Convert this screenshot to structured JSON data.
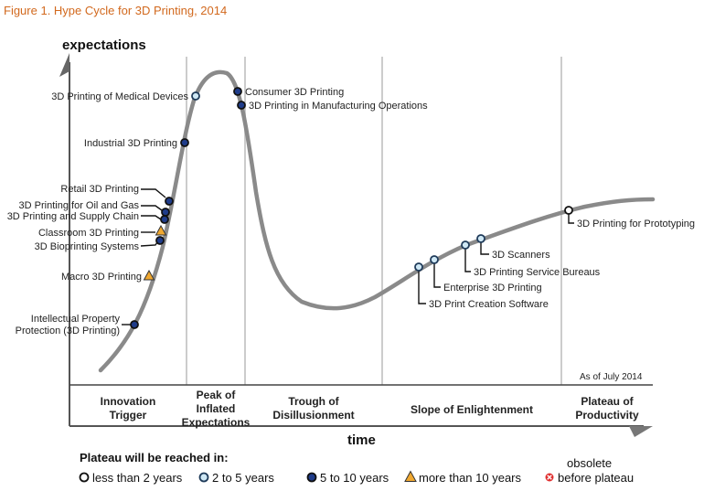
{
  "chart_data": {
    "type": "line",
    "title": "Figure 1. Hype Cycle for 3D Printing, 2014",
    "ylabel": "expectations",
    "xlabel": "time",
    "as_of": "As of July 2014",
    "phases": [
      {
        "name": "Innovation Trigger",
        "lines": [
          "Innovation",
          "Trigger"
        ]
      },
      {
        "name": "Peak of Inflated Expectations",
        "lines": [
          "Peak of",
          "Inflated",
          "Expectations"
        ]
      },
      {
        "name": "Trough of Disillusionment",
        "lines": [
          "Trough of",
          "Disillusionment"
        ]
      },
      {
        "name": "Slope of Enlightenment",
        "lines": [
          "Slope of Enlightenment"
        ]
      },
      {
        "name": "Plateau of Productivity",
        "lines": [
          "Plateau of",
          "Productivity"
        ]
      }
    ],
    "technologies": [
      {
        "name": "Intellectual Property Protection (3D Printing)",
        "lines": [
          "Intellectual Property",
          "Protection (3D Printing)"
        ],
        "category": "5to10",
        "phase": "Innovation Trigger"
      },
      {
        "name": "Macro 3D Printing",
        "category": "more10",
        "phase": "Innovation Trigger"
      },
      {
        "name": "3D Bioprinting Systems",
        "category": "5to10",
        "phase": "Innovation Trigger"
      },
      {
        "name": "Classroom 3D Printing",
        "category": "more10",
        "phase": "Innovation Trigger"
      },
      {
        "name": "3D Printing and Supply Chain",
        "category": "5to10",
        "phase": "Innovation Trigger"
      },
      {
        "name": "3D Printing for Oil and Gas",
        "category": "5to10",
        "phase": "Innovation Trigger"
      },
      {
        "name": "Retail 3D Printing",
        "category": "5to10",
        "phase": "Innovation Trigger"
      },
      {
        "name": "Industrial 3D Printing",
        "category": "5to10",
        "phase": "Innovation Trigger"
      },
      {
        "name": "3D Printing of Medical Devices",
        "category": "2to5",
        "phase": "Peak of Inflated Expectations"
      },
      {
        "name": "Consumer 3D Printing",
        "category": "5to10",
        "phase": "Peak of Inflated Expectations"
      },
      {
        "name": "3D Printing in Manufacturing Operations",
        "category": "5to10",
        "phase": "Peak of Inflated Expectations"
      },
      {
        "name": "3D Print Creation Software",
        "category": "2to5",
        "phase": "Slope of Enlightenment"
      },
      {
        "name": "Enterprise 3D Printing",
        "category": "2to5",
        "phase": "Slope of Enlightenment"
      },
      {
        "name": "3D Printing Service Bureaus",
        "category": "2to5",
        "phase": "Slope of Enlightenment"
      },
      {
        "name": "3D Scanners",
        "category": "2to5",
        "phase": "Slope of Enlightenment"
      },
      {
        "name": "3D Printing for Prototyping",
        "category": "less2",
        "phase": "Slope of Enlightenment"
      }
    ],
    "legend": {
      "title": "Plateau will be reached in:",
      "items": [
        {
          "key": "less2",
          "label": "less than 2 years",
          "shape": "circle",
          "fill": "#ffffff",
          "stroke": "#111111"
        },
        {
          "key": "2to5",
          "label": "2 to 5 years",
          "shape": "circle",
          "fill": "#cfe8f5",
          "stroke": "#1f3b5a"
        },
        {
          "key": "5to10",
          "label": "5 to 10 years",
          "shape": "circle",
          "fill": "#1f3c8a",
          "stroke": "#111111"
        },
        {
          "key": "more10",
          "label": "more than 10 years",
          "shape": "triangle",
          "fill": "#f0a830",
          "stroke": "#333333"
        },
        {
          "key": "obsolete",
          "label": "before plateau",
          "label_top": "obsolete",
          "shape": "x-circle",
          "fill": "#e03030",
          "stroke": "#e03030"
        }
      ]
    },
    "grid": false,
    "legend_position": "bottom"
  }
}
